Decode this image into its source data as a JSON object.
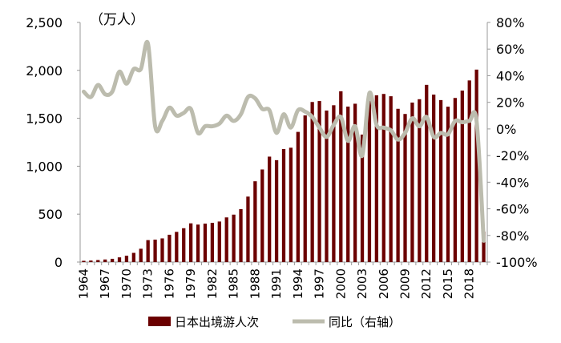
{
  "chart_data": {
    "type": "bar+line",
    "unit_label": "（万人）",
    "left_axis": {
      "ylim": [
        0,
        2500
      ],
      "ticks": [
        "0",
        "500",
        "1,000",
        "1,500",
        "2,000",
        "2,500"
      ]
    },
    "right_axis": {
      "ylim": [
        -100,
        80
      ],
      "ticks": [
        "-100%",
        "-80%",
        "-60%",
        "-40%",
        "-20%",
        "0%",
        "20%",
        "40%",
        "60%",
        "80%"
      ]
    },
    "x_tick_labels": [
      "1964",
      "1967",
      "1970",
      "1973",
      "1976",
      "1979",
      "1982",
      "1985",
      "1988",
      "1991",
      "1994",
      "1997",
      "2000",
      "2003",
      "2006",
      "2009",
      "2012",
      "2015",
      "2018"
    ],
    "years": [
      1964,
      1965,
      1966,
      1967,
      1968,
      1969,
      1970,
      1971,
      1972,
      1973,
      1974,
      1975,
      1976,
      1977,
      1978,
      1979,
      1980,
      1981,
      1982,
      1983,
      1984,
      1985,
      1986,
      1987,
      1988,
      1989,
      1990,
      1991,
      1992,
      1993,
      1994,
      1995,
      1996,
      1997,
      1998,
      1999,
      2000,
      2001,
      2002,
      2003,
      2004,
      2005,
      2006,
      2007,
      2008,
      2009,
      2010,
      2011,
      2012,
      2013,
      2014,
      2015,
      2016,
      2017,
      2018,
      2019,
      2020
    ],
    "series": [
      {
        "name": "日本出境游人次",
        "type": "bar",
        "axis": "left",
        "color": "#6b0000",
        "values": [
          13,
          16,
          21,
          27,
          34,
          49,
          66,
          96,
          139,
          229,
          234,
          247,
          285,
          315,
          353,
          404,
          391,
          401,
          409,
          423,
          466,
          495,
          552,
          683,
          843,
          966,
          1100,
          1063,
          1179,
          1193,
          1358,
          1530,
          1670,
          1680,
          1581,
          1636,
          1782,
          1622,
          1652,
          1330,
          1683,
          1740,
          1754,
          1730,
          1599,
          1545,
          1664,
          1699,
          1849,
          1747,
          1690,
          1621,
          1712,
          1789,
          1895,
          2008,
          317
        ]
      },
      {
        "name": "同比（右轴）",
        "type": "line",
        "axis": "right",
        "color": "#bcbcae",
        "values": [
          28,
          24,
          33,
          26,
          28,
          43,
          34,
          45,
          45,
          64,
          2,
          6,
          16,
          10,
          12,
          15,
          -3,
          2,
          2,
          4,
          10,
          6,
          11,
          24,
          23,
          15,
          14,
          -3,
          11,
          1,
          14,
          13,
          9,
          1,
          -6,
          3,
          9,
          -9,
          2,
          -20,
          27,
          3,
          1,
          -1,
          -8,
          -3,
          8,
          2,
          9,
          -6,
          -3,
          -4,
          6,
          5,
          6,
          6,
          -84
        ]
      }
    ],
    "legend_position": "bottom"
  }
}
